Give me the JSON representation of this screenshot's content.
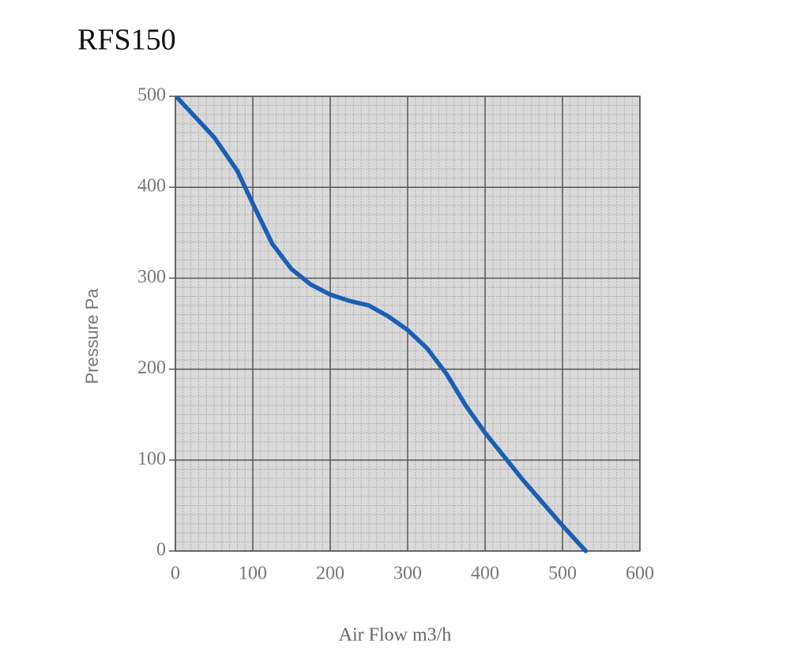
{
  "chart_data": {
    "type": "line",
    "title": "RFS150",
    "x_label": "Air Flow m3/h",
    "y_label": "Pressure Pa",
    "x": [
      3,
      50,
      80,
      100,
      125,
      150,
      175,
      200,
      225,
      250,
      275,
      300,
      325,
      350,
      375,
      400,
      450,
      500,
      530
    ],
    "values": [
      498,
      455,
      418,
      382,
      338,
      310,
      293,
      282,
      275,
      270,
      258,
      243,
      223,
      195,
      160,
      130,
      77,
      28,
      0
    ],
    "color": "#1a5fb4",
    "xlim": [
      0,
      600
    ],
    "xticks": [
      0,
      100,
      200,
      300,
      400,
      500,
      600
    ],
    "ylim": [
      0,
      500
    ],
    "yticks": [
      0,
      100,
      200,
      300,
      400,
      500
    ],
    "grid": true,
    "minor_grid": 10
  }
}
